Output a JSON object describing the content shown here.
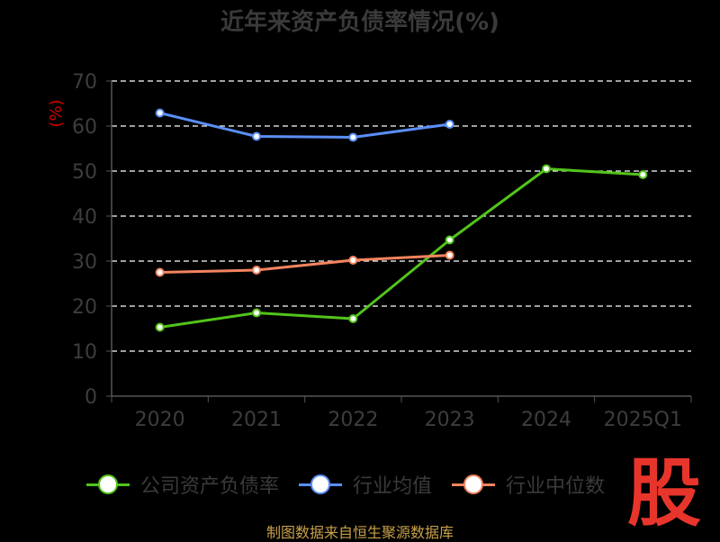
{
  "title": "近年来资产负债率情况(%)",
  "source_text": "制图数据来自恒生聚源数据库",
  "logo_text": "股",
  "colors": {
    "background": "#000000",
    "grid": "#ffffff",
    "axis": "#555555",
    "tick_text": "#3d3d3d",
    "ylabel": "#cc0000",
    "logo": "#e8352c",
    "source": "#c8a04a"
  },
  "chart_data": {
    "type": "line",
    "title": "近年来资产负债率情况(%)",
    "xlabel": "",
    "ylabel": "(%)",
    "categories": [
      "2020",
      "2021",
      "2022",
      "2023",
      "2024",
      "2025Q1"
    ],
    "ylim": [
      0,
      70
    ],
    "yticks": [
      0,
      10,
      20,
      30,
      40,
      50,
      60,
      70
    ],
    "grid": true,
    "legend_position": "bottom",
    "series": [
      {
        "name": "公司资产负债率",
        "color": "#52c41a",
        "values": [
          15.3,
          18.5,
          17.2,
          34.7,
          50.5,
          49.2
        ]
      },
      {
        "name": "行业均值",
        "color": "#5b8ff9",
        "values": [
          62.9,
          57.7,
          57.5,
          60.4,
          null,
          null
        ]
      },
      {
        "name": "行业中位数",
        "color": "#f4845f",
        "values": [
          27.5,
          28.0,
          30.2,
          31.3,
          null,
          null
        ]
      }
    ]
  }
}
